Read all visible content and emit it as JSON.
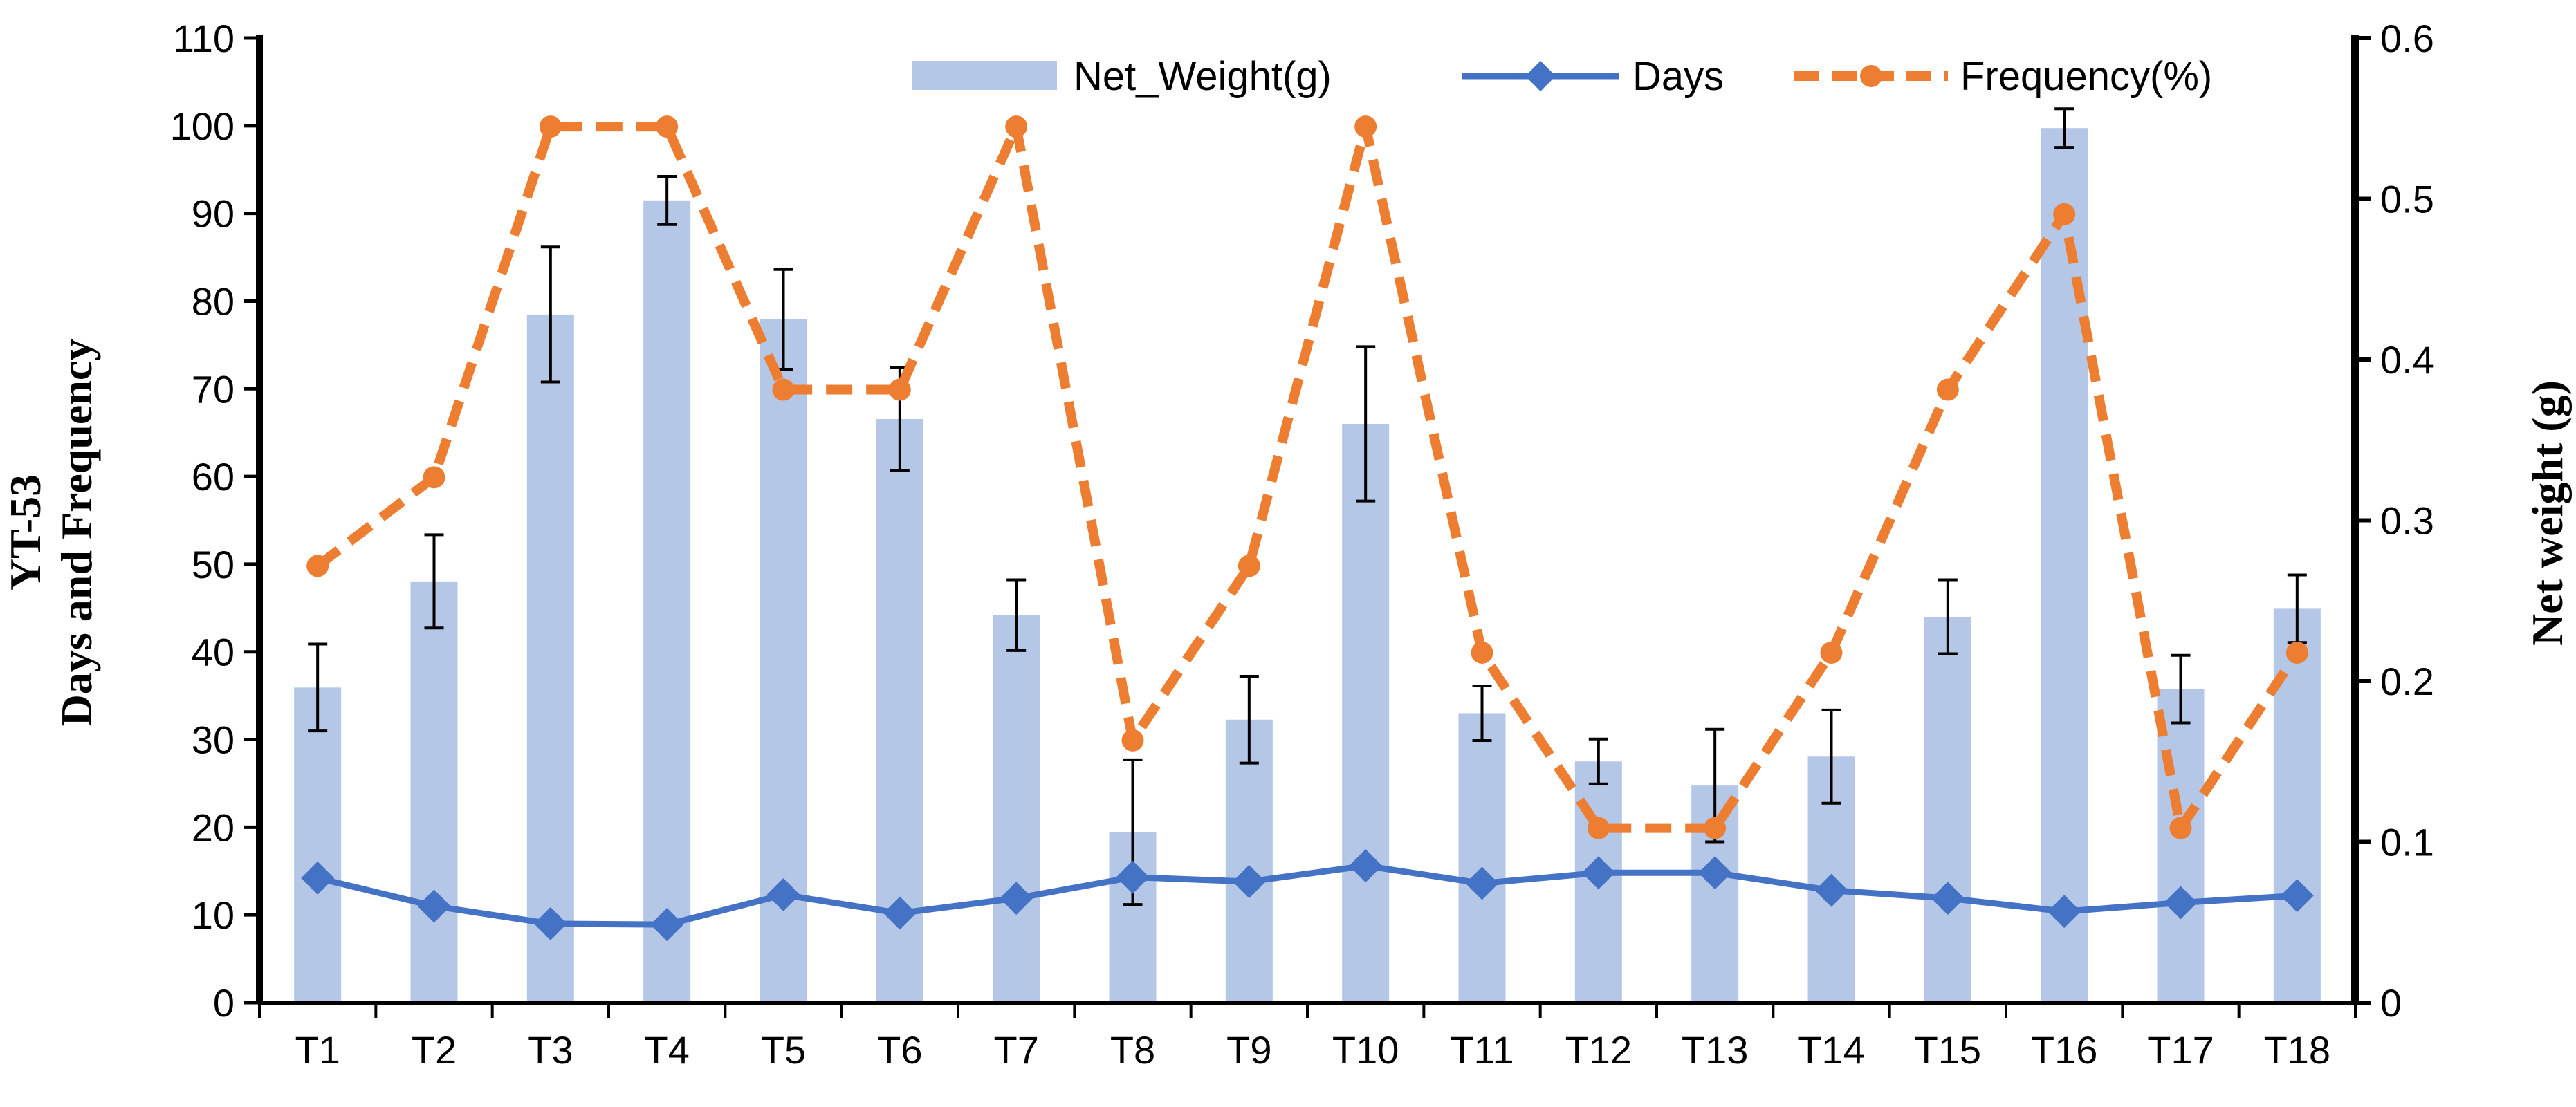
{
  "chart_data": {
    "type": "bar",
    "categories": [
      "T1",
      "T2",
      "T3",
      "T4",
      "T5",
      "T6",
      "T7",
      "T8",
      "T9",
      "T10",
      "T11",
      "T12",
      "T13",
      "T14",
      "T15",
      "T16",
      "T17",
      "T18"
    ],
    "series": [
      {
        "name": "Net_Weight(g)",
        "kind": "bar",
        "axis": "right",
        "color": "#b4c7e7",
        "values": [
          0.196,
          0.262,
          0.428,
          0.499,
          0.425,
          0.363,
          0.241,
          0.106,
          0.176,
          0.36,
          0.18,
          0.15,
          0.135,
          0.153,
          0.24,
          0.544,
          0.195,
          0.245
        ],
        "errors": [
          0.027,
          0.029,
          0.042,
          0.015,
          0.031,
          0.032,
          0.022,
          0.045,
          0.027,
          0.048,
          0.017,
          0.014,
          0.035,
          0.029,
          0.023,
          0.012,
          0.021,
          0.021
        ]
      },
      {
        "name": "Days",
        "kind": "line",
        "axis": "left",
        "color": "#4472c4",
        "marker": "diamond",
        "values": [
          14.2,
          11.0,
          9.0,
          8.9,
          12.3,
          10.2,
          11.9,
          14.3,
          13.8,
          15.6,
          13.6,
          14.8,
          14.8,
          12.8,
          11.9,
          10.4,
          11.4,
          12.2
        ]
      },
      {
        "name": "Frequency(%)",
        "kind": "dashed-line",
        "axis": "left",
        "color": "#ed7d31",
        "marker": "circle",
        "values": [
          49.8,
          59.9,
          99.9,
          99.9,
          69.9,
          69.9,
          99.9,
          29.9,
          49.8,
          99.9,
          39.9,
          19.9,
          19.9,
          39.9,
          69.9,
          89.9,
          19.9,
          39.9
        ]
      }
    ],
    "left_axis": {
      "label_line1": "YT-53",
      "label_line2": "Days and Frequency",
      "ylim": [
        0,
        110
      ],
      "ticks": [
        "0",
        "10",
        "20",
        "30",
        "40",
        "50",
        "60",
        "70",
        "80",
        "90",
        "100",
        "110"
      ]
    },
    "right_axis": {
      "label": "Net weight (g)",
      "ylim": [
        0,
        0.6
      ],
      "ticks": [
        "0",
        "0.1",
        "0.2",
        "0.3",
        "0.4",
        "0.5",
        "0.6"
      ]
    },
    "legend_position": "top-center",
    "grid": false
  }
}
